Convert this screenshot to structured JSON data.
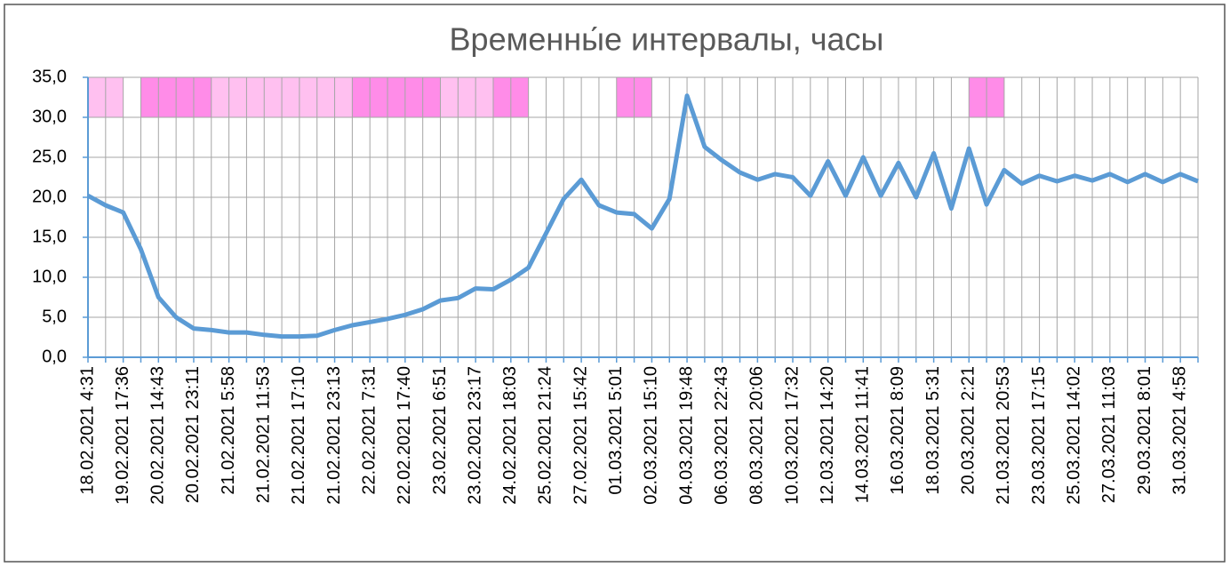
{
  "chart_data": {
    "type": "line",
    "title": "Временны́е интервалы, часы",
    "categories": [
      "18.02.2021 4:31",
      null,
      "19.02.2021 17:36",
      null,
      "20.02.2021 14:43",
      null,
      "20.02.2021 23:11",
      null,
      "21.02.2021 5:58",
      null,
      "21.02.2021 11:53",
      null,
      "21.02.2021 17:10",
      null,
      "21.02.2021 23:13",
      null,
      "22.02.2021 7:31",
      null,
      "22.02.2021 17:40",
      null,
      "23.02.2021 6:51",
      null,
      "23.02.2021 23:17",
      null,
      "24.02.2021 18:03",
      null,
      "25.02.2021 21:24",
      null,
      "27.02.2021 15:42",
      null,
      "01.03.2021 5:01",
      null,
      "02.03.2021 15:10",
      null,
      "04.03.2021 19:48",
      null,
      "06.03.2021 22:43",
      null,
      "08.03.2021 20:06",
      null,
      "10.03.2021 17:32",
      null,
      "12.03.2021 14:20",
      null,
      "14.03.2021 11:41",
      null,
      "16.03.2021 8:09",
      null,
      "18.03.2021 5:31",
      null,
      "20.03.2021 2:21",
      null,
      "21.03.2021 20:53",
      null,
      "23.03.2021 17:15",
      null,
      "25.03.2021 14:02",
      null,
      "27.03.2021 11:03",
      null,
      "29.03.2021 8:01",
      null,
      "31.03.2021 4:58",
      null
    ],
    "values": [
      20.2,
      19.0,
      18.1,
      13.5,
      7.5,
      5.0,
      3.6,
      3.4,
      3.1,
      3.1,
      2.8,
      2.6,
      2.6,
      2.7,
      3.4,
      4.0,
      4.4,
      4.8,
      5.3,
      6.0,
      7.1,
      7.4,
      8.6,
      8.5,
      9.7,
      11.2,
      15.5,
      19.8,
      22.2,
      19.0,
      18.1,
      17.9,
      16.1,
      19.8,
      32.7,
      26.3,
      24.6,
      23.1,
      22.2,
      22.9,
      22.5,
      20.2,
      24.5,
      20.2,
      25.0,
      20.2,
      24.3,
      20.0,
      25.5,
      18.6,
      26.1,
      19.1,
      23.4,
      21.7,
      22.7,
      22.0,
      22.7,
      22.1,
      22.9,
      21.9,
      22.9,
      21.9,
      22.9,
      22.0
    ],
    "color": "#5b9bd5",
    "bands": {
      "base": 30,
      "values": [
        5,
        5,
        null,
        5,
        5,
        5,
        5,
        5,
        5,
        5,
        5,
        5,
        5,
        5,
        5,
        5,
        5,
        5,
        5,
        5,
        5,
        5,
        5,
        5,
        5,
        null,
        null,
        null,
        null,
        null,
        5,
        5,
        null,
        null,
        null,
        null,
        null,
        null,
        null,
        null,
        null,
        null,
        null,
        null,
        null,
        null,
        null,
        null,
        null,
        null,
        5,
        5,
        null,
        null,
        null,
        null,
        null,
        null,
        null,
        null,
        null,
        null,
        null,
        null
      ],
      "colors": [
        "#ffc0f0",
        "#ffc0f0",
        null,
        "#ff8ce8",
        "#ff8ce8",
        "#ff8ce8",
        "#ff8ce8",
        "#ffc0f0",
        "#ffc0f0",
        "#ffc0f0",
        "#ffc0f0",
        "#ffc0f0",
        "#ffc0f0",
        "#ffc0f0",
        "#ffc0f0",
        "#ff8ce8",
        "#ff8ce8",
        "#ff8ce8",
        "#ff8ce8",
        "#ff8ce8",
        "#ffc0f0",
        "#ffc0f0",
        "#ffc0f0",
        "#ff8ce8",
        "#ff8ce8",
        null,
        null,
        null,
        null,
        null,
        "#ff8ce8",
        "#ff8ce8",
        null,
        null,
        null,
        null,
        null,
        null,
        null,
        null,
        null,
        null,
        null,
        null,
        null,
        null,
        null,
        null,
        null,
        null,
        "#ff8ce8",
        "#ff8ce8",
        null,
        null,
        null,
        null,
        null,
        null,
        null,
        null,
        null,
        null,
        null,
        null
      ]
    },
    "ylim": [
      0,
      35
    ],
    "yticks": [
      {
        "value": 0,
        "label": "0,0"
      },
      {
        "value": 5,
        "label": "5,0"
      },
      {
        "value": 10,
        "label": "10,0"
      },
      {
        "value": 15,
        "label": "15,0"
      },
      {
        "value": 20,
        "label": "20,0"
      },
      {
        "value": 25,
        "label": "25,0"
      },
      {
        "value": 30,
        "label": "30,0"
      },
      {
        "value": 35,
        "label": "35,0"
      }
    ],
    "grid": true
  }
}
